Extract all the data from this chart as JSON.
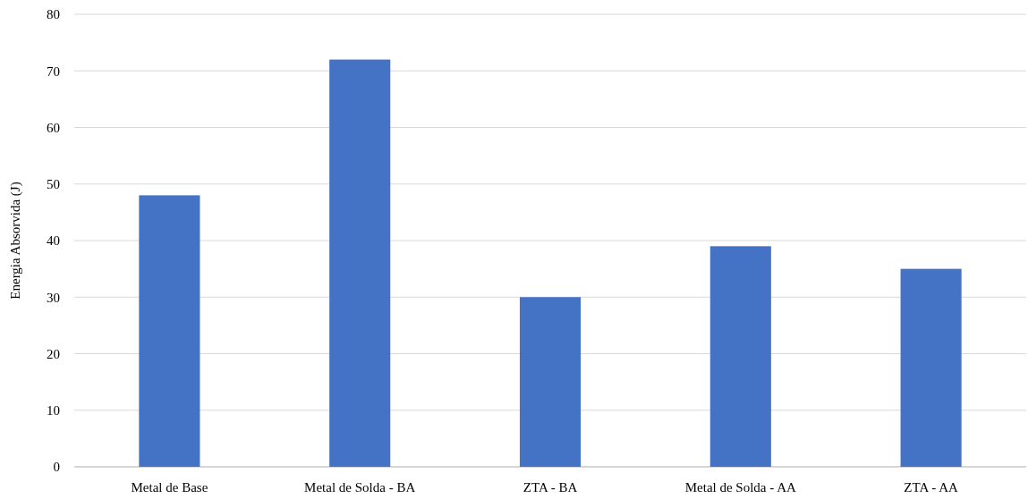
{
  "chart_data": {
    "type": "bar",
    "ylabel": "Energia Absorvida (J)",
    "categories": [
      "Metal de Base",
      "Metal de Solda - BA",
      "ZTA - BA",
      "Metal de Solda - AA",
      "ZTA - AA"
    ],
    "values": [
      48,
      72,
      30,
      39,
      35
    ],
    "color": "#4472c4",
    "ylim": [
      0,
      80
    ],
    "yticks": [
      0,
      10,
      20,
      30,
      40,
      50,
      60,
      70,
      80
    ],
    "grid": "y"
  }
}
